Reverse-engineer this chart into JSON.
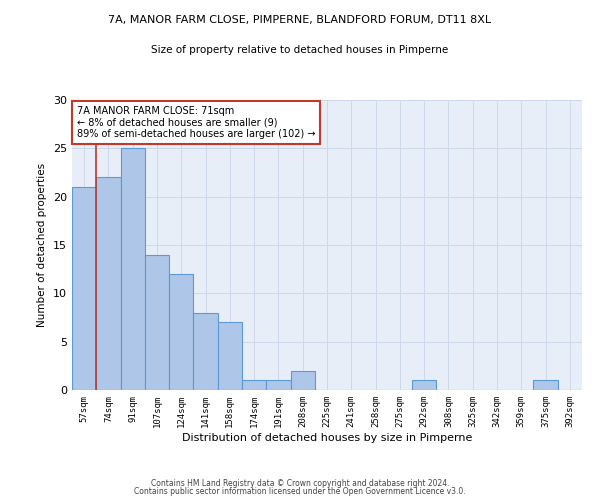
{
  "title1": "7A, MANOR FARM CLOSE, PIMPERNE, BLANDFORD FORUM, DT11 8XL",
  "title2": "Size of property relative to detached houses in Pimperne",
  "xlabel": "Distribution of detached houses by size in Pimperne",
  "ylabel": "Number of detached properties",
  "bin_labels": [
    "57sqm",
    "74sqm",
    "91sqm",
    "107sqm",
    "124sqm",
    "141sqm",
    "158sqm",
    "174sqm",
    "191sqm",
    "208sqm",
    "225sqm",
    "241sqm",
    "258sqm",
    "275sqm",
    "292sqm",
    "308sqm",
    "325sqm",
    "342sqm",
    "359sqm",
    "375sqm",
    "392sqm"
  ],
  "bar_heights": [
    21,
    22,
    25,
    14,
    12,
    8,
    7,
    1,
    1,
    2,
    0,
    0,
    0,
    0,
    1,
    0,
    0,
    0,
    0,
    1,
    0
  ],
  "bar_color": "#aec6e8",
  "bar_edge_color": "#5b9bd5",
  "vline_color": "#c0392b",
  "annotation_text": "7A MANOR FARM CLOSE: 71sqm\n← 8% of detached houses are smaller (9)\n89% of semi-detached houses are larger (102) →",
  "annotation_box_color": "#ffffff",
  "annotation_edge_color": "#c0392b",
  "ylim": [
    0,
    30
  ],
  "yticks": [
    0,
    5,
    10,
    15,
    20,
    25,
    30
  ],
  "footnote1": "Contains HM Land Registry data © Crown copyright and database right 2024.",
  "footnote2": "Contains public sector information licensed under the Open Government Licence v3.0.",
  "grid_color": "#cdd8ea",
  "background_color": "#e8eef7"
}
